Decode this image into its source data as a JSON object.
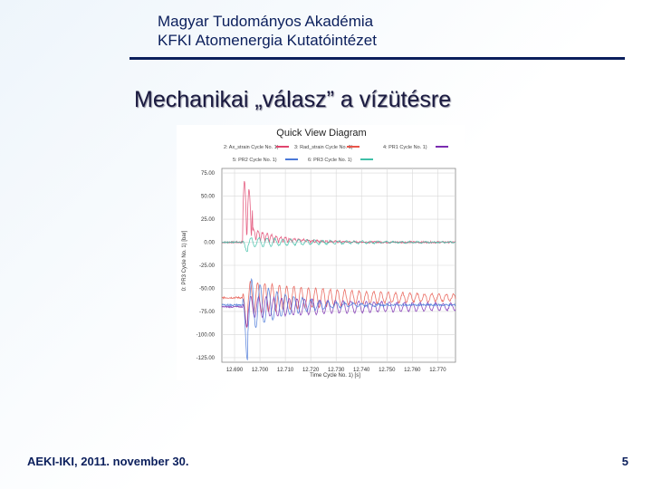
{
  "header": {
    "line1": "Magyar Tudományos Akadémia",
    "line2": "KFKI Atomenergia Kutatóintézet"
  },
  "slide_title": "Mechanikai „válasz” a vízütésre",
  "footer": {
    "left": "AEKI-IKI, 2011. november 30.",
    "page_number": "5"
  },
  "chart_data": {
    "type": "line",
    "title": "Quick View Diagram",
    "xlabel": "Time Cycle No. 1) [s]",
    "ylabel": "0: PR3 Cycle No. 1) [bar]",
    "x_ticks": [
      "12.690",
      "12.700",
      "12.710",
      "12.720",
      "12.730",
      "12.740",
      "12.750",
      "12.760",
      "12.770"
    ],
    "y_ticks": [
      "75.00",
      "50.00",
      "25.00",
      "0.00",
      "-25.00",
      "-50.00",
      "-75.00",
      "-100.00",
      "-125.00"
    ],
    "xlim": [
      12.685,
      12.777
    ],
    "ylim": [
      -130,
      80
    ],
    "grid": true,
    "legend_position": "top",
    "legend": [
      {
        "label": "2: Ax_strain Cycle No. 1)",
        "color": "#e0456e"
      },
      {
        "label": "3: Rad_strain Cycle No. 1)",
        "color": "#e8554a"
      },
      {
        "label": "4: PR1 Cycle No. 1)",
        "color": "#7a2cb0"
      },
      {
        "label": "5: PR2 Cycle No. 1)",
        "color": "#4a78d8"
      },
      {
        "label": "6: PR3 Cycle No. 1)",
        "color": "#3fc0a8"
      }
    ],
    "series": [
      {
        "name": "2: Ax_strain Cycle No. 1)",
        "color": "#e0456e",
        "kind": "spike_up",
        "base": 0,
        "amplitude": 70,
        "t0": 12.6932,
        "decay": 0.012,
        "freq": 280,
        "noise": 2
      },
      {
        "name": "3: Rad_strain Cycle No. 1)",
        "color": "#e8554a",
        "kind": "osc",
        "base": -60,
        "amplitude": 18,
        "t0": 12.6932,
        "decay": 0.05,
        "freq": 350,
        "noise": 2
      },
      {
        "name": "4: PR1 Cycle No. 1)",
        "color": "#7a2cb0",
        "kind": "osc",
        "base": -70,
        "amplitude": 12,
        "t0": 12.6932,
        "decay": 0.07,
        "freq": 330,
        "noise": 1.5
      },
      {
        "name": "5: PR2 Cycle No. 1)",
        "color": "#4a78d8",
        "kind": "osc",
        "base": -68,
        "amplitude": 35,
        "t0": 12.6932,
        "decay": 0.015,
        "freq": 300,
        "noise": 2
      },
      {
        "name": "6: PR3 Cycle No. 1)",
        "color": "#3fc0a8",
        "kind": "osc",
        "base": 0,
        "amplitude": 6,
        "t0": 12.6932,
        "decay": 0.03,
        "freq": 320,
        "noise": 1.5
      }
    ]
  }
}
